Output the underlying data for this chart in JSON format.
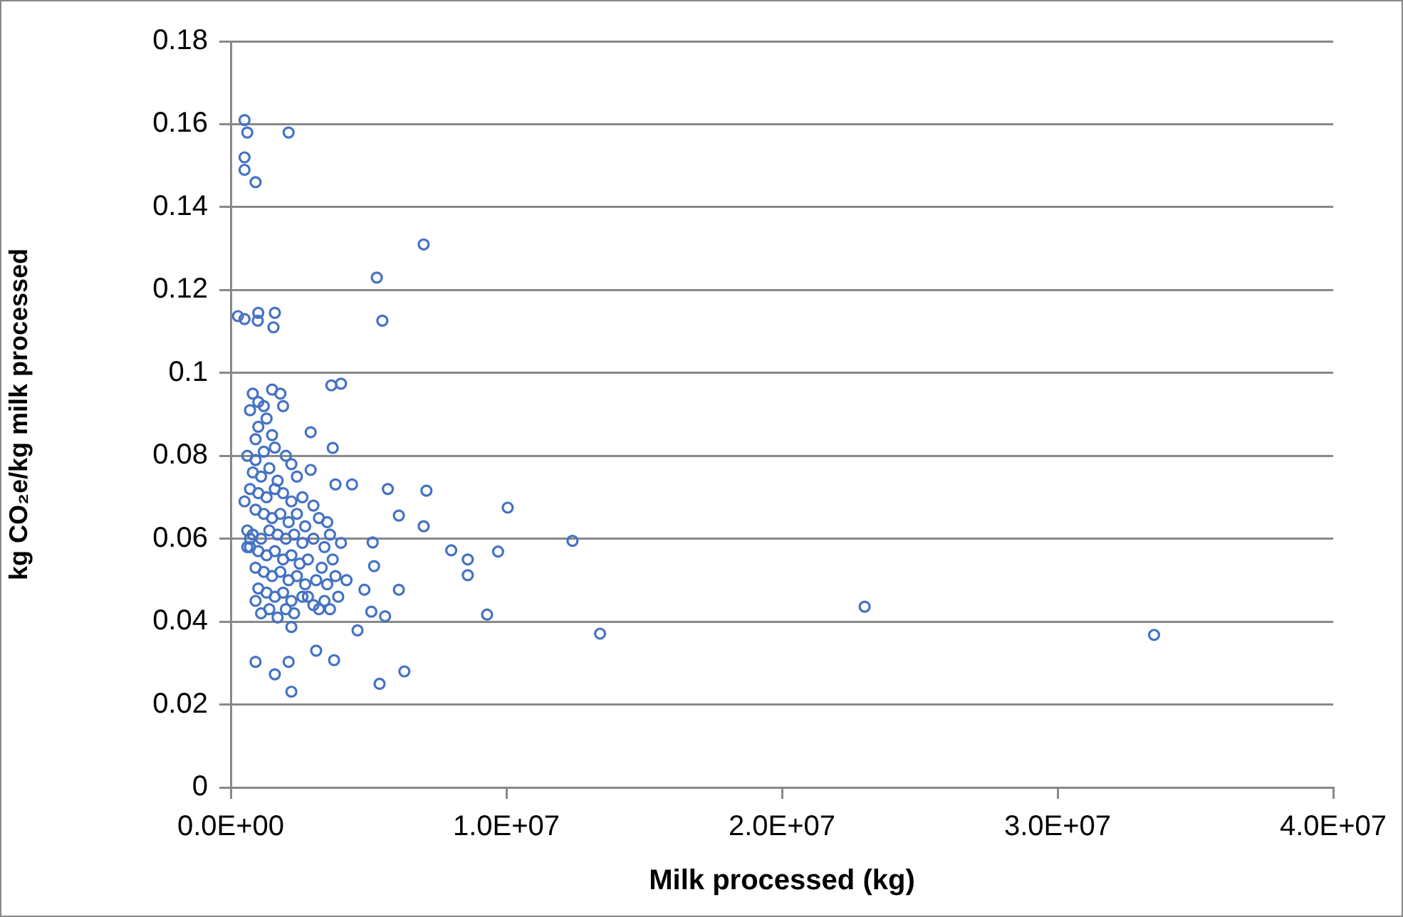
{
  "chart_data": {
    "type": "scatter",
    "xlabel": "Milk processed (kg)",
    "ylabel": "kg CO₂e/kg milk processed",
    "xlim": [
      0,
      40000000
    ],
    "xticks": [
      {
        "value": 0,
        "label": "0.0E+00"
      },
      {
        "value": 10000000,
        "label": "1.0E+07"
      },
      {
        "value": 20000000,
        "label": "2.0E+07"
      },
      {
        "value": 30000000,
        "label": "3.0E+07"
      },
      {
        "value": 40000000,
        "label": "4.0E+07"
      }
    ],
    "ylim": [
      0,
      0.18
    ],
    "yticks": [
      0,
      0.02,
      0.04,
      0.06,
      0.08,
      0.1,
      0.12,
      0.14,
      0.16,
      0.18
    ],
    "grid": "y",
    "marker": "circle",
    "series": [
      {
        "color": "#4472c4",
        "x": [
          500000,
          600000,
          500000,
          500000,
          900000,
          2100000,
          7000000,
          5300000,
          5500000,
          260000,
          500000,
          1000000,
          980000,
          1600000,
          1550000,
          3650000,
          4000000,
          2900000,
          3700000,
          2900000,
          3800000,
          4400000,
          5700000,
          7100000,
          6100000,
          7000000,
          10050000,
          8000000,
          8600000,
          8600000,
          9700000,
          12400000,
          5150000,
          5200000,
          4850000,
          6100000,
          5600000,
          9300000,
          13400000,
          23000000,
          33500000,
          900000,
          1600000,
          2100000,
          2200000,
          3100000,
          3750000,
          4600000,
          5400000,
          6300000,
          2200000,
          5100000,
          800000,
          1000000,
          700000,
          1200000,
          1500000,
          1800000,
          1900000,
          1300000,
          1000000,
          900000,
          1500000,
          600000,
          900000,
          1200000,
          1600000,
          2000000,
          2200000,
          800000,
          1100000,
          1400000,
          1700000,
          2400000,
          700000,
          1000000,
          1300000,
          1600000,
          1900000,
          2200000,
          2600000,
          3000000,
          500000,
          900000,
          1200000,
          1500000,
          1800000,
          2100000,
          2400000,
          2700000,
          3200000,
          3500000,
          600000,
          800000,
          1100000,
          1400000,
          1700000,
          2000000,
          2300000,
          2600000,
          3000000,
          3400000,
          3600000,
          700000,
          1000000,
          1300000,
          1600000,
          1900000,
          2200000,
          2500000,
          2800000,
          3300000,
          3700000,
          900000,
          1200000,
          1500000,
          1800000,
          2100000,
          2400000,
          2700000,
          3100000,
          3500000,
          3800000,
          1000000,
          1300000,
          1600000,
          1900000,
          2200000,
          2600000,
          3000000,
          3400000,
          3600000,
          900000,
          1100000,
          1400000,
          1700000,
          2000000,
          2300000,
          2800000,
          3200000,
          700000,
          600000,
          4000000,
          4200000,
          3900000
        ],
        "values": [
          0.161,
          0.158,
          0.152,
          0.149,
          0.146,
          0.158,
          0.131,
          0.123,
          0.1126,
          0.1137,
          0.113,
          0.1145,
          0.1126,
          0.1145,
          0.111,
          0.097,
          0.0974,
          0.0857,
          0.0819,
          0.0766,
          0.0731,
          0.0731,
          0.072,
          0.0716,
          0.0656,
          0.063,
          0.0675,
          0.0572,
          0.055,
          0.0512,
          0.0569,
          0.0595,
          0.0591,
          0.0534,
          0.0477,
          0.0477,
          0.0413,
          0.0417,
          0.0371,
          0.0436,
          0.0368,
          0.0303,
          0.0273,
          0.0303,
          0.0231,
          0.033,
          0.0307,
          0.0379,
          0.025,
          0.028,
          0.0387,
          0.0424,
          0.095,
          0.093,
          0.091,
          0.092,
          0.096,
          0.095,
          0.092,
          0.089,
          0.087,
          0.084,
          0.085,
          0.08,
          0.079,
          0.081,
          0.082,
          0.08,
          0.078,
          0.076,
          0.075,
          0.077,
          0.074,
          0.075,
          0.072,
          0.071,
          0.07,
          0.072,
          0.071,
          0.069,
          0.07,
          0.068,
          0.069,
          0.067,
          0.066,
          0.065,
          0.066,
          0.064,
          0.066,
          0.063,
          0.065,
          0.064,
          0.062,
          0.061,
          0.06,
          0.062,
          0.061,
          0.06,
          0.061,
          0.059,
          0.06,
          0.058,
          0.061,
          0.058,
          0.057,
          0.056,
          0.057,
          0.055,
          0.056,
          0.054,
          0.055,
          0.053,
          0.055,
          0.053,
          0.052,
          0.051,
          0.052,
          0.05,
          0.051,
          0.049,
          0.05,
          0.049,
          0.051,
          0.048,
          0.047,
          0.046,
          0.047,
          0.045,
          0.046,
          0.044,
          0.045,
          0.043,
          0.045,
          0.042,
          0.043,
          0.041,
          0.043,
          0.042,
          0.046,
          0.043,
          0.06,
          0.058,
          0.059,
          0.05,
          0.046
        ]
      }
    ]
  }
}
